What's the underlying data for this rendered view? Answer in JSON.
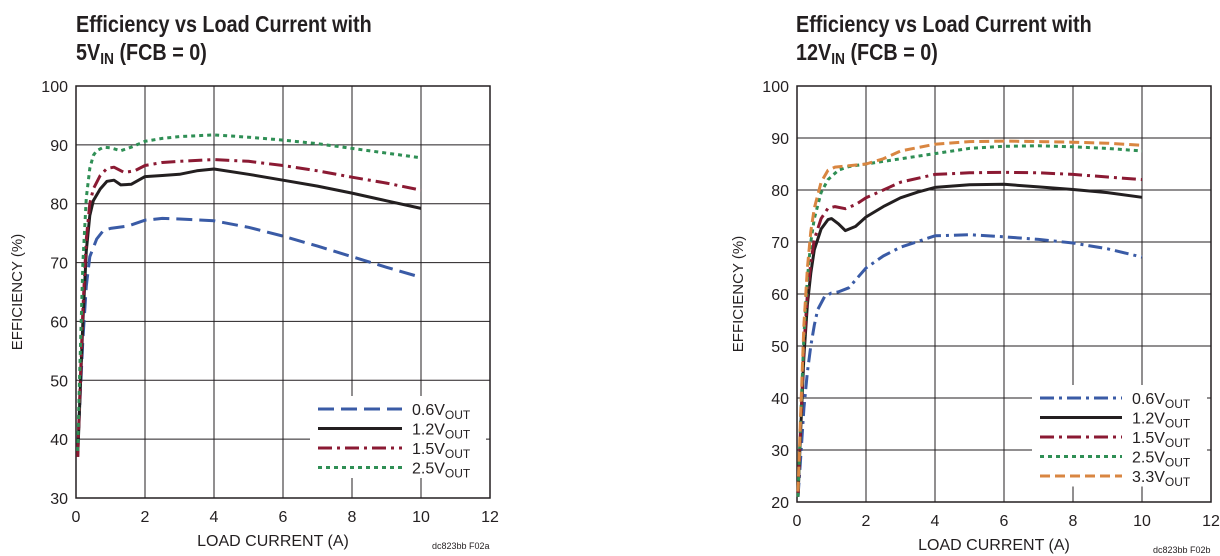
{
  "charts_meta": [
    {
      "title_line1": "Efficiency vs Load Current with",
      "title_vin": "5V",
      "title_vin_sub": "IN",
      "title_tail": " (FCB = 0)",
      "code": "dc823bb F02a"
    },
    {
      "title_line1": "Efficiency vs Load Current with",
      "title_vin": "12V",
      "title_vin_sub": "IN",
      "title_tail": " (FCB = 0)",
      "code": "dc823bb F02b"
    }
  ],
  "colors": {
    "blue": "#3a5ba6",
    "black": "#231f20",
    "maroon": "#8b1a33",
    "green": "#2f8f55",
    "orange": "#d98641"
  },
  "chart_data": [
    {
      "type": "line",
      "xlabel": "LOAD CURRENT (A)",
      "ylabel": "EFFICIENCY (%)",
      "xlim": [
        0,
        12
      ],
      "ylim": [
        30,
        100
      ],
      "xticks": [
        0,
        2,
        4,
        6,
        8,
        10,
        12
      ],
      "yticks": [
        30,
        40,
        50,
        60,
        70,
        80,
        90,
        100
      ],
      "grid": true,
      "legend_position": "bottom-right",
      "series": [
        {
          "name": "0.6V",
          "name_sub": "OUT",
          "color": "blue",
          "dash": "16,7",
          "x": [
            0.05,
            0.1,
            0.2,
            0.3,
            0.4,
            0.6,
            0.8,
            1.0,
            1.5,
            2.0,
            2.5,
            3.0,
            4.0,
            5.0,
            6.0,
            7.0,
            8.0,
            9.0,
            10.0
          ],
          "y": [
            38,
            45,
            57,
            66,
            71,
            74,
            75.5,
            75.8,
            76.2,
            77.2,
            77.5,
            77.4,
            77.1,
            76.0,
            74.5,
            72.8,
            71.0,
            69.2,
            67.5
          ]
        },
        {
          "name": "1.2V",
          "name_sub": "OUT",
          "color": "black",
          "dash": "",
          "x": [
            0.05,
            0.1,
            0.2,
            0.3,
            0.4,
            0.5,
            0.7,
            0.9,
            1.1,
            1.3,
            1.6,
            2.0,
            2.5,
            3.0,
            3.5,
            4.0,
            5.0,
            6.0,
            7.0,
            8.0,
            9.0,
            10.0
          ],
          "y": [
            37,
            45,
            60,
            72,
            78,
            80.5,
            82.5,
            83.8,
            84.0,
            83.2,
            83.3,
            84.6,
            84.8,
            85.0,
            85.6,
            85.9,
            85.0,
            84.0,
            83.0,
            81.8,
            80.5,
            79.2
          ]
        },
        {
          "name": "1.5V",
          "name_sub": "OUT",
          "color": "maroon",
          "dash": "14,5,3,5",
          "x": [
            0.05,
            0.1,
            0.2,
            0.3,
            0.4,
            0.5,
            0.7,
            0.9,
            1.1,
            1.4,
            1.7,
            2.0,
            2.5,
            3.0,
            4.0,
            5.0,
            6.0,
            7.0,
            8.0,
            9.0,
            10.0
          ],
          "y": [
            37,
            46,
            62,
            74,
            80,
            82.5,
            84.8,
            86.0,
            86.2,
            85.3,
            85.6,
            86.5,
            87.0,
            87.2,
            87.5,
            87.2,
            86.5,
            85.6,
            84.5,
            83.5,
            82.3
          ]
        },
        {
          "name": "2.5V",
          "name_sub": "OUT",
          "color": "green",
          "dash": "4,4",
          "x": [
            0.05,
            0.1,
            0.2,
            0.3,
            0.4,
            0.5,
            0.6,
            0.8,
            1.0,
            1.3,
            1.6,
            2.0,
            2.5,
            3.0,
            4.0,
            5.0,
            6.0,
            7.0,
            8.0,
            9.0,
            10.0
          ],
          "y": [
            38,
            50,
            70,
            81,
            86,
            88.2,
            89.0,
            89.6,
            89.5,
            89.0,
            89.6,
            90.6,
            91.1,
            91.4,
            91.7,
            91.3,
            90.8,
            90.2,
            89.4,
            88.6,
            87.8
          ]
        }
      ]
    },
    {
      "type": "line",
      "xlabel": "LOAD CURRENT (A)",
      "ylabel": "EFFICIENCY (%)",
      "xlim": [
        0,
        12
      ],
      "ylim": [
        20,
        100
      ],
      "xticks": [
        0,
        2,
        4,
        6,
        8,
        10,
        12
      ],
      "yticks": [
        20,
        30,
        40,
        50,
        60,
        70,
        80,
        90,
        100
      ],
      "grid": true,
      "legend_position": "bottom-right",
      "series": [
        {
          "name": "0.6V",
          "name_sub": "OUT",
          "color": "blue",
          "dash": "14,5,3,5",
          "x": [
            0.03,
            0.1,
            0.2,
            0.3,
            0.4,
            0.5,
            0.6,
            0.8,
            1.0,
            1.2,
            1.5,
            2.0,
            2.5,
            3.0,
            4.0,
            5.0,
            6.0,
            7.0,
            8.0,
            9.0,
            10.0
          ],
          "y": [
            21,
            28,
            38,
            45,
            50,
            54,
            57,
            59.5,
            60.2,
            60.4,
            61.2,
            65.0,
            67.3,
            69.0,
            71.2,
            71.4,
            71.0,
            70.5,
            69.8,
            68.7,
            67.1
          ]
        },
        {
          "name": "1.2V",
          "name_sub": "OUT",
          "color": "black",
          "dash": "",
          "x": [
            0.03,
            0.1,
            0.2,
            0.3,
            0.4,
            0.5,
            0.7,
            0.9,
            1.0,
            1.2,
            1.4,
            1.7,
            2.0,
            2.5,
            3.0,
            3.5,
            4.0,
            5.0,
            6.0,
            7.0,
            8.0,
            9.0,
            10.0
          ],
          "y": [
            21,
            33,
            48,
            58,
            64,
            68.5,
            72.5,
            74.3,
            74.5,
            73.5,
            72.2,
            73.0,
            74.8,
            76.8,
            78.5,
            79.6,
            80.5,
            81.0,
            81.1,
            80.6,
            80.1,
            79.5,
            78.6
          ]
        },
        {
          "name": "1.5V",
          "name_sub": "OUT",
          "color": "maroon",
          "dash": "14,5,3,5",
          "x": [
            0.03,
            0.1,
            0.2,
            0.3,
            0.4,
            0.5,
            0.7,
            0.9,
            1.1,
            1.4,
            1.7,
            2.0,
            2.5,
            3.0,
            4.0,
            5.0,
            6.0,
            7.0,
            8.0,
            9.0,
            10.0
          ],
          "y": [
            21,
            34,
            50,
            60,
            66,
            70.5,
            74.5,
            76.5,
            76.8,
            76.4,
            77.2,
            78.5,
            80.0,
            81.5,
            83.0,
            83.3,
            83.4,
            83.3,
            83.0,
            82.5,
            82.0
          ]
        },
        {
          "name": "2.5V",
          "name_sub": "OUT",
          "color": "green",
          "dash": "4,4",
          "x": [
            0.03,
            0.1,
            0.2,
            0.3,
            0.4,
            0.5,
            0.7,
            0.9,
            1.2,
            1.5,
            2.0,
            2.5,
            3.0,
            4.0,
            5.0,
            6.0,
            7.0,
            8.0,
            9.0,
            10.0
          ],
          "y": [
            21,
            35,
            52,
            63,
            70,
            74.5,
            79.5,
            82.0,
            83.8,
            84.5,
            85.0,
            85.5,
            86.0,
            87.0,
            88.0,
            88.4,
            88.5,
            88.3,
            88.0,
            87.5
          ]
        },
        {
          "name": "3.3V",
          "name_sub": "OUT",
          "color": "orange",
          "dash": "10,5",
          "x": [
            0.03,
            0.1,
            0.2,
            0.3,
            0.4,
            0.5,
            0.7,
            0.9,
            1.1,
            1.4,
            2.0,
            2.5,
            3.0,
            4.0,
            5.0,
            6.0,
            7.0,
            8.0,
            9.0,
            10.0
          ],
          "y": [
            22,
            36,
            54,
            65,
            72,
            76.5,
            81.5,
            83.8,
            84.4,
            84.6,
            85.0,
            86.0,
            87.5,
            88.8,
            89.3,
            89.4,
            89.3,
            89.2,
            89.0,
            88.6
          ]
        }
      ]
    }
  ]
}
